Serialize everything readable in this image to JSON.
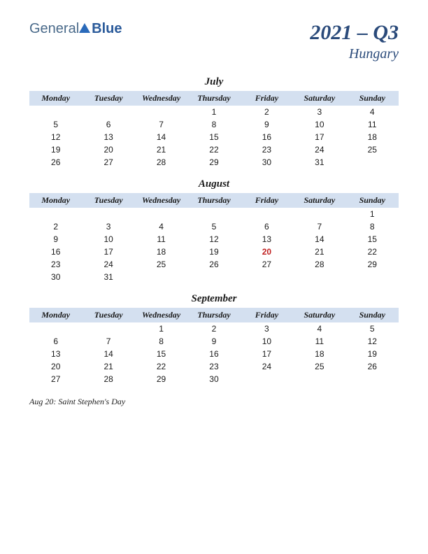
{
  "logo": {
    "text1": "General",
    "text2": "Blue"
  },
  "title": {
    "main": "2021 – Q3",
    "sub": "Hungary"
  },
  "day_headers": [
    "Monday",
    "Tuesday",
    "Wednesday",
    "Thursday",
    "Friday",
    "Saturday",
    "Sunday"
  ],
  "months": [
    {
      "name": "July",
      "weeks": [
        [
          "",
          "",
          "",
          "1",
          "2",
          "3",
          "4"
        ],
        [
          "5",
          "6",
          "7",
          "8",
          "9",
          "10",
          "11"
        ],
        [
          "12",
          "13",
          "14",
          "15",
          "16",
          "17",
          "18"
        ],
        [
          "19",
          "20",
          "21",
          "22",
          "23",
          "24",
          "25"
        ],
        [
          "26",
          "27",
          "28",
          "29",
          "30",
          "31",
          ""
        ]
      ],
      "holidays": []
    },
    {
      "name": "August",
      "weeks": [
        [
          "",
          "",
          "",
          "",
          "",
          "",
          "1"
        ],
        [
          "2",
          "3",
          "4",
          "5",
          "6",
          "7",
          "8"
        ],
        [
          "9",
          "10",
          "11",
          "12",
          "13",
          "14",
          "15"
        ],
        [
          "16",
          "17",
          "18",
          "19",
          "20",
          "21",
          "22"
        ],
        [
          "23",
          "24",
          "25",
          "26",
          "27",
          "28",
          "29"
        ],
        [
          "30",
          "31",
          "",
          "",
          "",
          "",
          ""
        ]
      ],
      "holidays": [
        "20"
      ]
    },
    {
      "name": "September",
      "weeks": [
        [
          "",
          "",
          "1",
          "2",
          "3",
          "4",
          "5"
        ],
        [
          "6",
          "7",
          "8",
          "9",
          "10",
          "11",
          "12"
        ],
        [
          "13",
          "14",
          "15",
          "16",
          "17",
          "18",
          "19"
        ],
        [
          "20",
          "21",
          "22",
          "23",
          "24",
          "25",
          "26"
        ],
        [
          "27",
          "28",
          "29",
          "30",
          "",
          "",
          ""
        ]
      ],
      "holidays": []
    }
  ],
  "footnote": "Aug 20: Saint Stephen's Day",
  "colors": {
    "header_bg": "#d4e0f0",
    "title_color": "#2a4a7a",
    "text_color": "#1a1a1a",
    "holiday_color": "#c02020",
    "logo_color": "#2a5a9a"
  }
}
